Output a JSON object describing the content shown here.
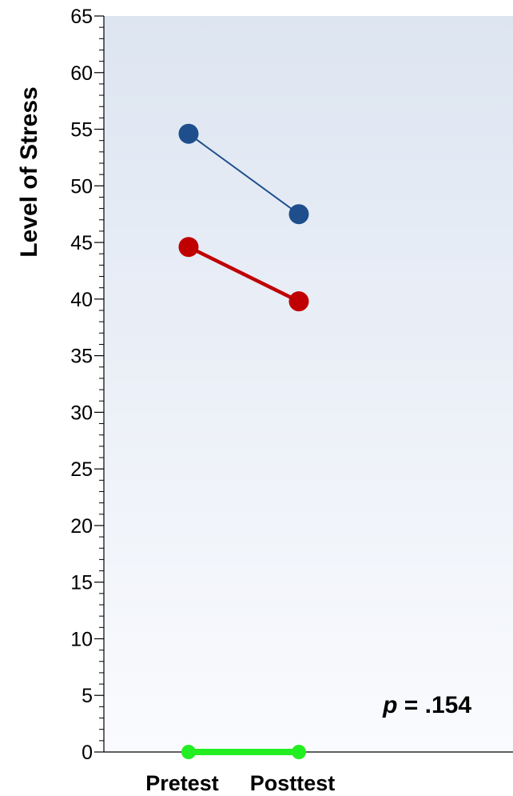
{
  "chart_data": {
    "type": "line",
    "ylabel": "Level of Stress",
    "xlabel": "",
    "categories": [
      "Pretest",
      "Posttest"
    ],
    "ylim": [
      0,
      65
    ],
    "y_major_ticks": [
      0,
      5,
      10,
      15,
      20,
      25,
      30,
      35,
      40,
      45,
      50,
      55,
      60,
      65
    ],
    "grid": false,
    "legend": "none",
    "annotation": {
      "p_symbol": "p",
      "p_rest": " = .154"
    },
    "series": [
      {
        "values": [
          54.6,
          47.5
        ],
        "color": "#1f4e8c",
        "line_weight": "thin"
      },
      {
        "values": [
          44.6,
          39.8
        ],
        "color": "#c00000",
        "line_weight": "thick"
      },
      {
        "values": [
          0,
          0
        ],
        "color": "#22ee22",
        "line_weight": "thick"
      }
    ],
    "background": {
      "top_color": "#dde5f1",
      "bottom_color": "#fafbfe"
    }
  }
}
